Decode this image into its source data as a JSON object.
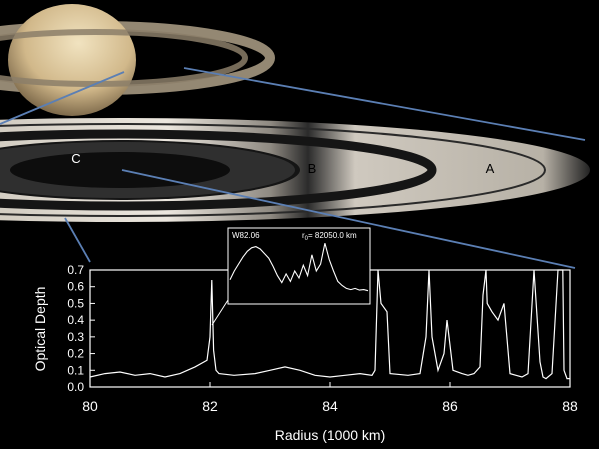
{
  "ring_labels": {
    "c": "C",
    "b": "B",
    "a": "A"
  },
  "inset": {
    "label": "W82.06",
    "radius_label": "r",
    "radius_sub": "0",
    "radius_value": "= 82050.0 km"
  },
  "colors": {
    "background": "#000000",
    "trace": "#ffffff",
    "connector": "#5b7fb4",
    "ring_gap": "#1a1a1a"
  },
  "chart_data": {
    "type": "line",
    "title": "",
    "xlabel": "Radius (1000 km)",
    "ylabel": "Optical Depth",
    "xlim": [
      80,
      88
    ],
    "ylim": [
      0,
      0.7
    ],
    "x_ticks": [
      "80",
      "82",
      "84",
      "86",
      "88"
    ],
    "y_ticks": [
      "0.0",
      "0.1",
      "0.2",
      "0.3",
      "0.4",
      "0.5",
      "0.6",
      "0.7"
    ],
    "series": [
      {
        "x": [
          80.0,
          80.25,
          80.5,
          80.75,
          81.0,
          81.25,
          81.5,
          81.75,
          81.95,
          82.0,
          82.03,
          82.06,
          82.1,
          82.15,
          82.4,
          82.75,
          83.0,
          83.25,
          83.5,
          83.75,
          84.0,
          84.25,
          84.5,
          84.7,
          84.75,
          84.8,
          84.85,
          84.95,
          85.0,
          85.3,
          85.5,
          85.6,
          85.65,
          85.7,
          85.8,
          85.9,
          85.95,
          86.0,
          86.05,
          86.2,
          86.3,
          86.4,
          86.5,
          86.55,
          86.6,
          86.62,
          86.7,
          86.8,
          86.9,
          87.0,
          87.1,
          87.2,
          87.3,
          87.4,
          87.5,
          87.55,
          87.6,
          87.7,
          87.8,
          87.88,
          87.9,
          87.95,
          88.0
        ],
        "y": [
          0.06,
          0.08,
          0.09,
          0.07,
          0.08,
          0.06,
          0.08,
          0.12,
          0.16,
          0.3,
          0.64,
          0.22,
          0.1,
          0.08,
          0.07,
          0.08,
          0.1,
          0.12,
          0.1,
          0.07,
          0.06,
          0.07,
          0.08,
          0.07,
          0.1,
          0.7,
          0.5,
          0.45,
          0.08,
          0.07,
          0.08,
          0.3,
          0.7,
          0.3,
          0.1,
          0.2,
          0.4,
          0.25,
          0.1,
          0.08,
          0.07,
          0.08,
          0.12,
          0.55,
          0.7,
          0.5,
          0.45,
          0.4,
          0.5,
          0.08,
          0.07,
          0.06,
          0.08,
          0.7,
          0.15,
          0.06,
          0.05,
          0.08,
          0.7,
          0.7,
          0.1,
          0.05,
          0.05
        ]
      }
    ],
    "inset_trace": [
      0.35,
      0.5,
      0.62,
      0.74,
      0.84,
      0.9,
      0.92,
      0.88,
      0.8,
      0.72,
      0.58,
      0.42,
      0.3,
      0.45,
      0.32,
      0.5,
      0.38,
      0.6,
      0.42,
      0.78,
      0.5,
      0.62,
      0.98,
      0.7,
      0.5,
      0.32,
      0.25,
      0.2,
      0.18,
      0.2,
      0.17,
      0.18,
      0.16
    ]
  }
}
